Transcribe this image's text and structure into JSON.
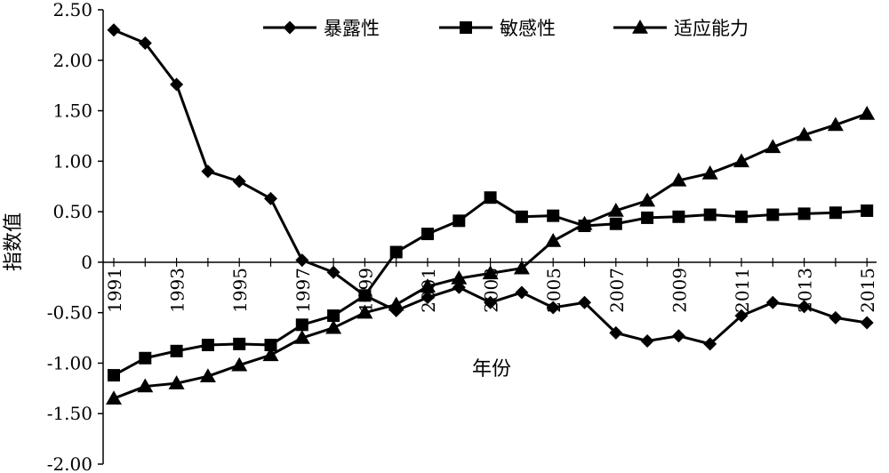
{
  "chart_data": {
    "type": "line",
    "title": "",
    "xlabel": "年份",
    "ylabel": "指数值",
    "x": [
      1991,
      1992,
      1993,
      1994,
      1995,
      1996,
      1997,
      1998,
      1999,
      2000,
      2001,
      2002,
      2003,
      2004,
      2005,
      2006,
      2007,
      2008,
      2009,
      2010,
      2011,
      2012,
      2013,
      2014,
      2015
    ],
    "x_tick_labels": [
      "1991",
      "1993",
      "1995",
      "1997",
      "1999",
      "2001",
      "2003",
      "2005",
      "2007",
      "2009",
      "2011",
      "2013",
      "2015"
    ],
    "y_tick_labels": [
      "2.50",
      "2.00",
      "1.50",
      "1.00",
      "0.50",
      "0",
      "-0.50",
      "-1.00",
      "-1.50",
      "-2.00"
    ],
    "ylim": [
      -2.0,
      2.5
    ],
    "grid": false,
    "legend_position": "top",
    "series": [
      {
        "name": "暴露性",
        "marker": "diamond",
        "values": [
          2.3,
          2.17,
          1.76,
          0.9,
          0.8,
          0.63,
          0.02,
          -0.1,
          -0.33,
          -0.48,
          -0.35,
          -0.25,
          -0.4,
          -0.3,
          -0.45,
          -0.4,
          -0.7,
          -0.78,
          -0.73,
          -0.81,
          -0.53,
          -0.4,
          -0.44,
          -0.55,
          -0.6
        ]
      },
      {
        "name": "敏感性",
        "marker": "square",
        "values": [
          -1.12,
          -0.95,
          -0.88,
          -0.82,
          -0.81,
          -0.82,
          -0.62,
          -0.53,
          -0.33,
          0.1,
          0.28,
          0.41,
          0.64,
          0.45,
          0.46,
          0.36,
          0.38,
          0.44,
          0.45,
          0.47,
          0.45,
          0.47,
          0.48,
          0.49,
          0.51
        ]
      },
      {
        "name": "适应能力",
        "marker": "triangle",
        "values": [
          -1.35,
          -1.23,
          -1.2,
          -1.13,
          -1.02,
          -0.92,
          -0.75,
          -0.65,
          -0.5,
          -0.42,
          -0.24,
          -0.16,
          -0.11,
          -0.06,
          0.21,
          0.38,
          0.51,
          0.61,
          0.81,
          0.88,
          1.0,
          1.14,
          1.26,
          1.36,
          1.47
        ]
      }
    ]
  }
}
